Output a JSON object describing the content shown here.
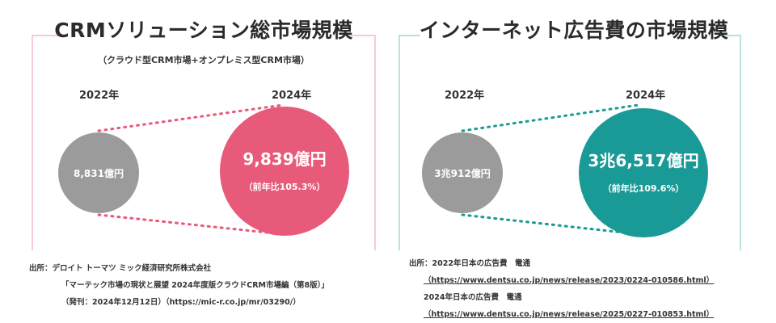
{
  "left": {
    "title": "CRMソリューション総市場規模",
    "subtitle": "（クラウド型CRM市場+オンプレミス型CRM市場）",
    "year_from": "2022年",
    "year_to": "2024年",
    "value_from": "8,831億円",
    "value_to": "9,839億円",
    "growth": "（前年比105.3%）",
    "source": [
      "出所：デロイト トーマツ ミック経済研究所株式会社",
      "「マーテック市場の現状と展望 2024年度版クラウドCRM市場編（第8版）」",
      "（発刊：2024年12月12日）（https://mic-r.co.jp/mr/03290/）"
    ]
  },
  "right": {
    "title": "インターネット広告費の市場規模",
    "year_from": "2022年",
    "year_to": "2024年",
    "value_from": "3兆912億円",
    "value_to": "3兆6,517億円",
    "growth": "（前年比109.6%）",
    "source": [
      "出所：2022年日本の広告費　電通",
      "（https://www.dentsu.co.jp/news/release/2023/0224-010586.html）",
      "2024年日本の広告費　電通",
      "（https://www.dentsu.co.jp/news/release/2025/0227-010853.html）"
    ]
  },
  "colors": {
    "left_accent": "#e85a7a",
    "left_frame": "#f2a9b9",
    "right_accent": "#1a9a96",
    "right_frame": "#8ccfcc",
    "grey": "#9b9b9b"
  }
}
